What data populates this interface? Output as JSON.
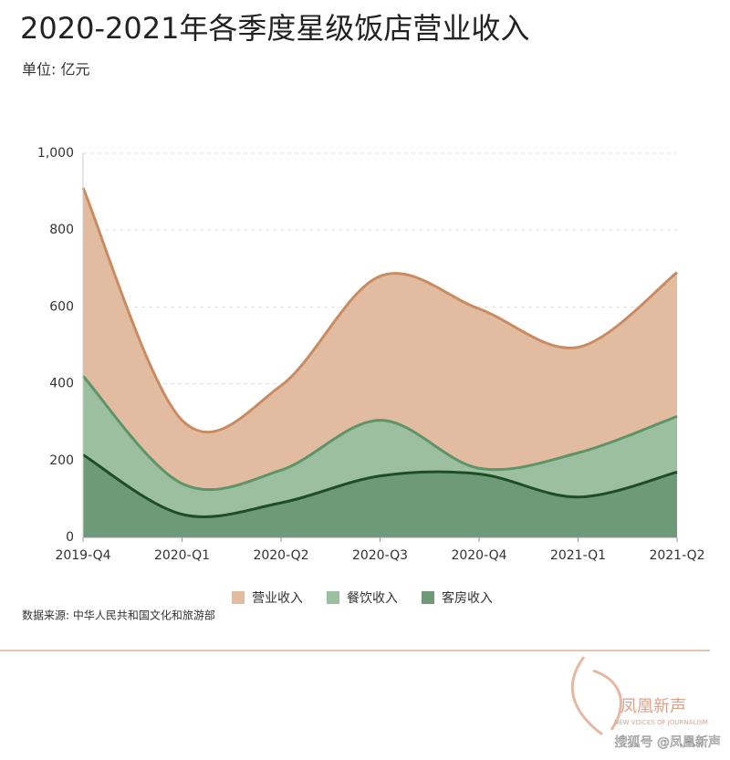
{
  "chart_data": {
    "type": "area",
    "title": "2020-2021年各季度星级饭店营业收入",
    "subtitle": "单位: 亿元",
    "source": "数据来源: 中华人民共和国文化和旅游部",
    "categories": [
      "2019-Q4",
      "2020-Q1",
      "2020-Q2",
      "2020-Q3",
      "2020-Q4",
      "2021-Q1",
      "2021-Q2"
    ],
    "series": [
      {
        "name": "营业收入",
        "color": "#e2bca0",
        "line_color": "#c98c62",
        "values": [
          910,
          305,
          395,
          680,
          595,
          495,
          690
        ]
      },
      {
        "name": "餐饮收入",
        "color": "#9bbf9f",
        "line_color": "#5e9468",
        "values": [
          420,
          140,
          175,
          305,
          180,
          220,
          315
        ]
      },
      {
        "name": "客房收入",
        "color": "#6e9a78",
        "line_color": "#1e4d26",
        "values": [
          215,
          60,
          90,
          160,
          165,
          105,
          170
        ]
      }
    ],
    "ylim": [
      0,
      1000
    ],
    "yticks": [
      0,
      200,
      400,
      600,
      800,
      {
        "value": 1000,
        "label": "1,000"
      }
    ],
    "grid": true,
    "legend": "bottom"
  },
  "watermark": {
    "brand": "凤凰新声",
    "tagline": "NEW VOICES OF JOURNALISM",
    "credit": "搜狐号 @凤凰新声"
  }
}
